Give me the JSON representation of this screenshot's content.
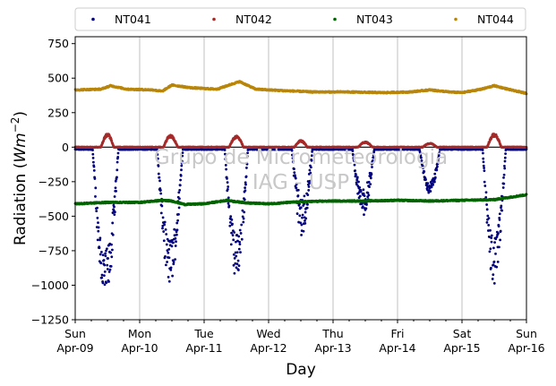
{
  "chart_data": {
    "type": "scatter",
    "title": "",
    "xlabel": "Day",
    "ylabel_main": "Radiation (",
    "ylabel_unit_base": "Wm",
    "ylabel_unit_exp": "−2",
    "ylabel_close": ")",
    "ylim": [
      -1250,
      800
    ],
    "yticks": [
      -1250,
      -1000,
      -750,
      -500,
      -250,
      0,
      250,
      500,
      750
    ],
    "ytick_labels": [
      "−1250",
      "−1000",
      "−750",
      "−500",
      "−250",
      "0",
      "250",
      "500",
      "750"
    ],
    "xlim_days": [
      0,
      7
    ],
    "xticks": [
      {
        "day": 0,
        "line1": "Sun",
        "line2": "Apr-09"
      },
      {
        "day": 1,
        "line1": "Mon",
        "line2": "Apr-10"
      },
      {
        "day": 2,
        "line1": "Tue",
        "line2": "Apr-11"
      },
      {
        "day": 3,
        "line1": "Wed",
        "line2": "Apr-12"
      },
      {
        "day": 4,
        "line1": "Thu",
        "line2": "Apr-13"
      },
      {
        "day": 5,
        "line1": "Fri",
        "line2": "Apr-14"
      },
      {
        "day": 6,
        "line1": "Sat",
        "line2": "Apr-15"
      },
      {
        "day": 7,
        "line1": "Sun",
        "line2": "Apr-16"
      }
    ],
    "grid": "vertical",
    "legend_placement": "top, outside",
    "watermark_line1": "Grupo de Micrometeorologia",
    "watermark_line2": "IAG - USP",
    "series": [
      {
        "name": "NT041",
        "color": "#00007f",
        "baseline": -15,
        "days": [
          {
            "center": 0.47,
            "width": 0.2,
            "min": -1120,
            "scatter": 0.35
          },
          {
            "center": 1.47,
            "width": 0.2,
            "min": -990,
            "scatter": 0.35
          },
          {
            "center": 2.5,
            "width": 0.18,
            "min": -930,
            "scatter": 0.35
          },
          {
            "center": 3.52,
            "width": 0.16,
            "min": -630,
            "scatter": 0.45
          },
          {
            "center": 4.47,
            "width": 0.17,
            "min": -480,
            "scatter": 0.4
          },
          {
            "center": 5.5,
            "width": 0.16,
            "min": -320,
            "scatter": 0.25
          },
          {
            "center": 6.5,
            "width": 0.18,
            "min": -980,
            "scatter": 0.35
          }
        ]
      },
      {
        "name": "NT042",
        "color": "#a52a2a",
        "baseline": 0,
        "days": [
          {
            "center": 0.5,
            "width": 0.1,
            "max": 100
          },
          {
            "center": 1.48,
            "width": 0.11,
            "max": 90
          },
          {
            "center": 2.5,
            "width": 0.11,
            "max": 85
          },
          {
            "center": 3.5,
            "width": 0.1,
            "max": 50
          },
          {
            "center": 4.5,
            "width": 0.11,
            "max": 40
          },
          {
            "center": 5.5,
            "width": 0.11,
            "max": 30
          },
          {
            "center": 6.5,
            "width": 0.11,
            "max": 100
          }
        ]
      },
      {
        "name": "NT043",
        "color": "#006400",
        "profile_x": [
          0,
          0.5,
          1.0,
          1.35,
          1.5,
          1.7,
          2.0,
          2.35,
          2.5,
          2.7,
          3.0,
          3.5,
          4.0,
          4.5,
          5.0,
          5.5,
          6.0,
          6.5,
          6.85,
          7.0
        ],
        "profile_y": [
          -410,
          -400,
          -400,
          -385,
          -390,
          -415,
          -410,
          -385,
          -395,
          -405,
          -410,
          -395,
          -390,
          -390,
          -385,
          -390,
          -385,
          -380,
          -355,
          -345
        ]
      },
      {
        "name": "NT044",
        "color": "#b8860b",
        "profile_x": [
          0,
          0.4,
          0.55,
          0.8,
          1.2,
          1.35,
          1.5,
          1.8,
          2.2,
          2.45,
          2.55,
          2.8,
          3.2,
          3.7,
          4.2,
          4.8,
          5.2,
          5.5,
          5.8,
          6.0,
          6.3,
          6.5,
          6.8,
          7.0
        ],
        "profile_y": [
          415,
          420,
          445,
          420,
          415,
          405,
          450,
          430,
          420,
          460,
          475,
          420,
          410,
          400,
          400,
          395,
          400,
          415,
          400,
          395,
          420,
          445,
          410,
          390
        ]
      }
    ]
  }
}
